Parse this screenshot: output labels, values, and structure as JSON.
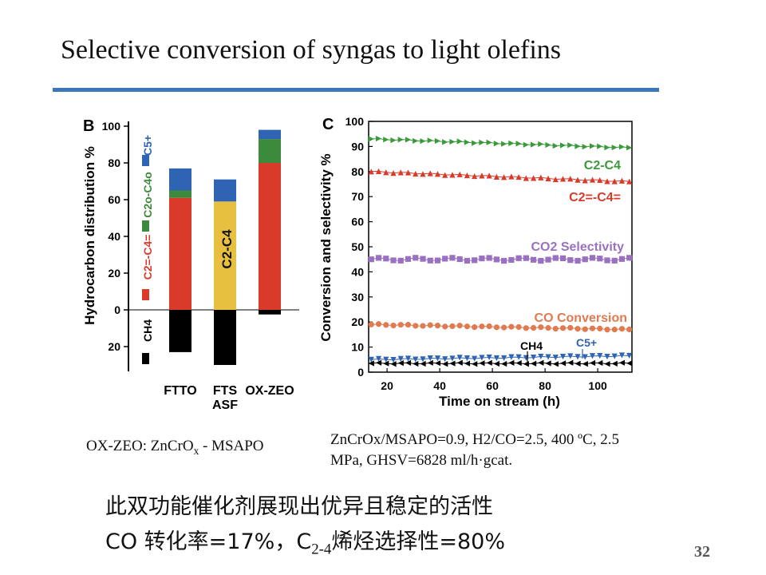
{
  "slide": {
    "title": "Selective conversion of syngas to light olefins",
    "page_number": "32",
    "caption_left_prefix": "OX-ZEO: ZnCrO",
    "caption_left_sub": "x",
    "caption_left_suffix": " - MSAPO",
    "caption_right_line1": "ZnCrOx/MSAPO=0.9, H2/CO=2.5, 400 ºC, 2.5",
    "caption_right_line2": "MPa, GHSV=6828 ml/h·gcat.",
    "cn_line1": "此双功能催化剂展现出优异且稳定的活性",
    "cn_line2_a": "CO 转化率=17%，C",
    "cn_line2_sub": "2-4",
    "cn_line2_b": "烯烃选择性=80%"
  },
  "colors": {
    "rule": "#3a76b8",
    "c5plus": "#2f64b4",
    "c2c4_paraffin": "#3c8a3c",
    "c2c4_olefin": "#d93a2a",
    "c2c4_asf": "#e8c040",
    "ch4": "#000000",
    "co2": "#9a70c0",
    "co_conv": "#e07a50",
    "c2c4_line": "#3a9a3a"
  },
  "chart_data": [
    {
      "panel": "B",
      "type": "bar",
      "stacked": true,
      "ylabel": "Hydrocarbon distribution %",
      "yticks_up": [
        "0",
        "20",
        "40",
        "60",
        "80",
        "100"
      ],
      "yticks_down": [
        "20"
      ],
      "ylim": [
        -30,
        100
      ],
      "categories": [
        "FTTO",
        "FTS ASF",
        "OX-ZEO"
      ],
      "category_labels": [
        "FTTO",
        "FTS",
        "ASF",
        "OX-ZEO"
      ],
      "series": [
        {
          "name": "CH4",
          "label": "CH4",
          "values": [
            -23,
            -30,
            -2.5
          ]
        },
        {
          "name": "C2=-C4=",
          "label": "C2=-C4=",
          "values": [
            61,
            0,
            80
          ]
        },
        {
          "name": "C2-C4 (ASF)",
          "label": "C2-C4",
          "values": [
            0,
            59,
            0
          ]
        },
        {
          "name": "C2o-C4o",
          "label": "C2o-C4o",
          "values": [
            4,
            0,
            13
          ]
        },
        {
          "name": "C5+",
          "label": "C5+",
          "values": [
            12,
            12,
            5
          ]
        }
      ],
      "legend_labels": {
        "c5": "C5+",
        "paraffin": "C2o-C4o",
        "olefin": "C2=-C4=",
        "ch4": "CH4"
      },
      "in_bar_label": "C2-C4"
    },
    {
      "panel": "C",
      "type": "line",
      "xlabel": "Time on stream (h)",
      "ylabel": "Conversion and selectivity %",
      "xlim": [
        13,
        113
      ],
      "ylim": [
        0,
        100
      ],
      "xticks": [
        "20",
        "40",
        "60",
        "80",
        "100"
      ],
      "yticks": [
        "0",
        "10",
        "20",
        "30",
        "40",
        "50",
        "60",
        "70",
        "80",
        "90",
        "100"
      ],
      "series": [
        {
          "name": "C2-C4",
          "label": "C2-C4",
          "start": 93,
          "end": 89.5
        },
        {
          "name": "C2=-C4=",
          "label": "C2=-C4=",
          "start": 80,
          "end": 76
        },
        {
          "name": "CO2 Selectivity",
          "label": "CO2 Selectivity",
          "start": 45,
          "end": 45
        },
        {
          "name": "CO Conversion",
          "label": "CO Conversion",
          "start": 19,
          "end": 17
        },
        {
          "name": "C5+",
          "label": "C5+",
          "start": 5,
          "end": 6.5
        },
        {
          "name": "CH4",
          "label": "CH4",
          "start": 3.5,
          "end": 3.5
        }
      ],
      "annotations": {
        "ch4": "CH4",
        "c5": "C5+"
      }
    }
  ]
}
